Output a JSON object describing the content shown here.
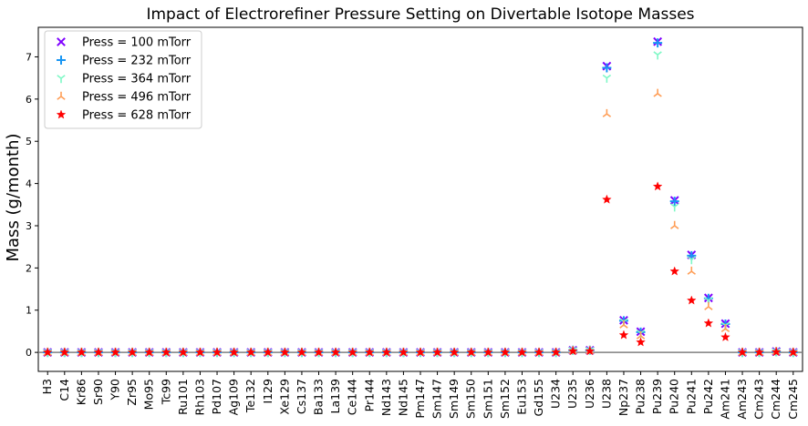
{
  "chart_data": {
    "type": "scatter",
    "title": "Impact of Electrorefiner Pressure Setting on Divertable Isotope Masses",
    "xlabel": "",
    "ylabel": "Mass (g/month)",
    "ylim": [
      -0.45,
      7.7
    ],
    "yticks": [
      0,
      1,
      2,
      3,
      4,
      5,
      6,
      7
    ],
    "grid": false,
    "legend_position": "top-left",
    "categories": [
      "H3",
      "C14",
      "Kr86",
      "Sr90",
      "Y90",
      "Zr95",
      "Mo95",
      "Tc99",
      "Ru101",
      "Rh103",
      "Pd107",
      "Ag109",
      "Te132",
      "I129",
      "Xe129",
      "Cs137",
      "Ba133",
      "La139",
      "Ce144",
      "Pr144",
      "Nd143",
      "Nd145",
      "Pm147",
      "Sm147",
      "Sm149",
      "Sm150",
      "Sm151",
      "Sm152",
      "Eu153",
      "Gd155",
      "U234",
      "U235",
      "U236",
      "U238",
      "Np237",
      "Pu238",
      "Pu239",
      "Pu240",
      "Pu241",
      "Pu242",
      "Am241",
      "Am243",
      "Cm243",
      "Cm244",
      "Cm245"
    ],
    "series": [
      {
        "name": "Press = 100 mTorr",
        "marker": "x",
        "color": "#7f00ff",
        "values": [
          0,
          0,
          0,
          0,
          0,
          0,
          0,
          0,
          0,
          0,
          0,
          0,
          0,
          0,
          0,
          0,
          0,
          0,
          0,
          0,
          0,
          0,
          0,
          0,
          0,
          0,
          0,
          0,
          0,
          0,
          0,
          0.05,
          0.05,
          6.78,
          0.76,
          0.49,
          7.36,
          3.6,
          2.31,
          1.29,
          0.68,
          0,
          0,
          0.02,
          0
        ]
      },
      {
        "name": "Press = 232 mTorr",
        "marker": "+",
        "color": "#1996f3",
        "values": [
          0,
          0,
          0,
          0,
          0,
          0,
          0,
          0,
          0,
          0,
          0,
          0,
          0,
          0,
          0,
          0,
          0,
          0,
          0,
          0,
          0,
          0,
          0,
          0,
          0,
          0,
          0,
          0,
          0,
          0,
          0,
          0.05,
          0.05,
          6.74,
          0.75,
          0.48,
          7.33,
          3.58,
          2.29,
          1.28,
          0.67,
          0,
          0,
          0.02,
          0
        ]
      },
      {
        "name": "Press = 364 mTorr",
        "marker": "tri_down",
        "color": "#7ff8c6",
        "values": [
          0,
          0,
          0,
          0,
          0,
          0,
          0,
          0,
          0,
          0,
          0,
          0,
          0,
          0,
          0,
          0,
          0,
          0,
          0,
          0,
          0,
          0,
          0,
          0,
          0,
          0,
          0,
          0,
          0,
          0,
          0,
          0.05,
          0.05,
          6.5,
          0.73,
          0.46,
          7.05,
          3.45,
          2.2,
          1.23,
          0.64,
          0,
          0,
          0.02,
          0
        ]
      },
      {
        "name": "Press = 496 mTorr",
        "marker": "tri_up",
        "color": "#ff9e57",
        "values": [
          0,
          0,
          0,
          0,
          0,
          0,
          0,
          0,
          0,
          0,
          0,
          0,
          0,
          0,
          0,
          0,
          0,
          0,
          0,
          0,
          0,
          0,
          0,
          0,
          0,
          0,
          0,
          0,
          0,
          0,
          0,
          0.04,
          0.04,
          5.65,
          0.65,
          0.39,
          6.13,
          3.0,
          1.92,
          1.08,
          0.56,
          0,
          0,
          0.02,
          0
        ]
      },
      {
        "name": "Press = 628 mTorr",
        "marker": "star",
        "color": "#ff0000",
        "values": [
          0,
          0,
          0,
          0,
          0,
          0,
          0,
          0,
          0,
          0,
          0,
          0,
          0,
          0,
          0,
          0,
          0,
          0,
          0,
          0,
          0,
          0,
          0,
          0,
          0,
          0,
          0,
          0,
          0,
          0,
          0,
          0.03,
          0.03,
          3.62,
          0.41,
          0.24,
          3.93,
          1.92,
          1.23,
          0.69,
          0.36,
          0,
          0,
          0.01,
          0
        ]
      }
    ]
  }
}
